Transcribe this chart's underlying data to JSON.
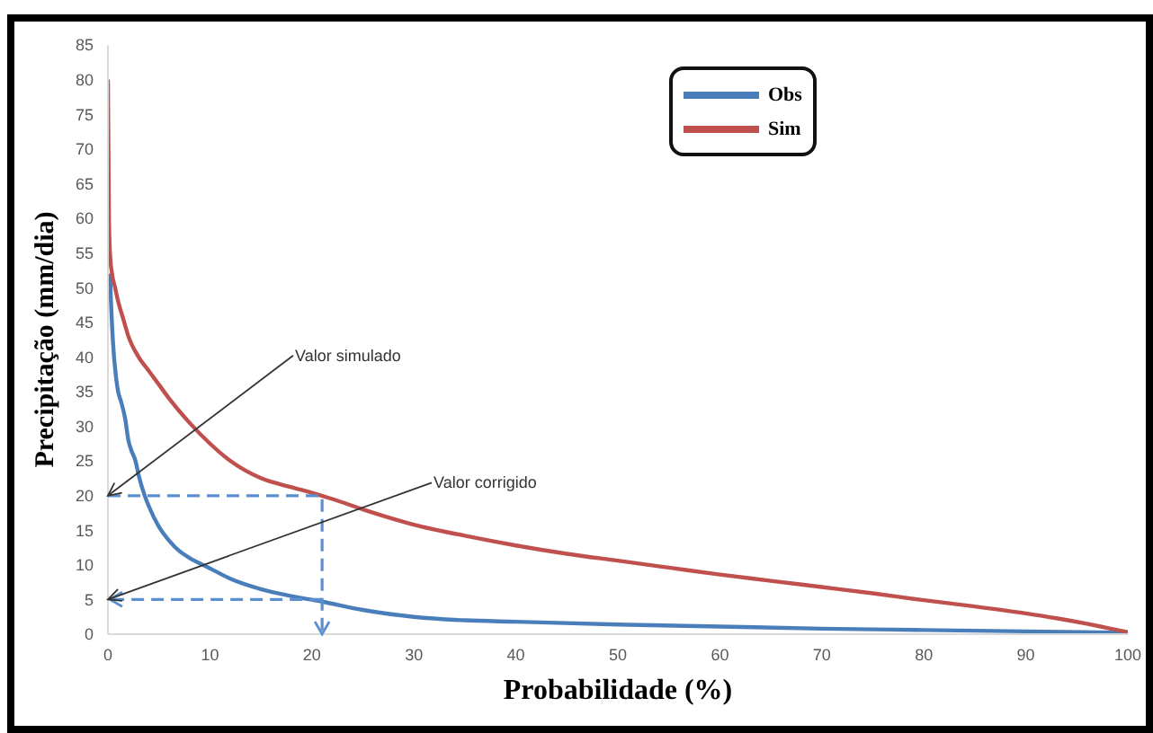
{
  "chart_data": {
    "type": "line",
    "xlabel": "Probabilidade (%)",
    "ylabel": "Precipitação (mm/dia)",
    "xlim": [
      0,
      100
    ],
    "xticks": [
      0,
      10,
      20,
      30,
      40,
      50,
      60,
      70,
      80,
      90,
      100
    ],
    "ylim": [
      0,
      85
    ],
    "yticks": [
      0,
      5,
      10,
      15,
      20,
      25,
      30,
      35,
      40,
      45,
      50,
      55,
      60,
      65,
      70,
      75,
      80,
      85
    ],
    "legend": "top",
    "marker": "none",
    "annotations": [
      "Valor simulado",
      "Valor corrigido"
    ],
    "series": [
      {
        "name": "Obs",
        "color": "#4a7ebb",
        "x": [
          0.2,
          0.3,
          0.5,
          0.8,
          1,
          1.3,
          1.7,
          2,
          2.3,
          2.7,
          3,
          3.6,
          4,
          5,
          6,
          7,
          8,
          10,
          12,
          15,
          18,
          21,
          25,
          30,
          35,
          40,
          50,
          60,
          70,
          80,
          90,
          100
        ],
        "values": [
          52,
          48,
          42,
          37,
          35,
          33.5,
          31,
          28,
          26.5,
          25,
          23,
          20,
          18.5,
          15.5,
          13.5,
          12,
          11,
          9.5,
          8,
          6.5,
          5.5,
          4.7,
          3.5,
          2.5,
          2,
          1.8,
          1.4,
          1.1,
          0.8,
          0.6,
          0.4,
          0.2
        ]
      },
      {
        "name": "Sim",
        "color": "#c0504d",
        "x": [
          0,
          0.05,
          0.1,
          0.2,
          0.4,
          0.7,
          1,
          1.5,
          2,
          3,
          4,
          5,
          6,
          8,
          10,
          12,
          15,
          18,
          20,
          22,
          25,
          30,
          35,
          40,
          45,
          50,
          55,
          60,
          65,
          70,
          75,
          80,
          85,
          90,
          93,
          96,
          98,
          100
        ],
        "values": [
          80,
          70,
          60,
          55,
          52,
          50,
          48,
          45.5,
          43,
          40,
          38,
          36,
          34,
          30.5,
          27.5,
          25,
          22.5,
          21.2,
          20.4,
          19.5,
          18,
          15.8,
          14.2,
          12.8,
          11.6,
          10.6,
          9.6,
          8.6,
          7.7,
          6.8,
          5.9,
          4.9,
          4,
          3,
          2.3,
          1.5,
          0.9,
          0.3
        ]
      }
    ]
  }
}
